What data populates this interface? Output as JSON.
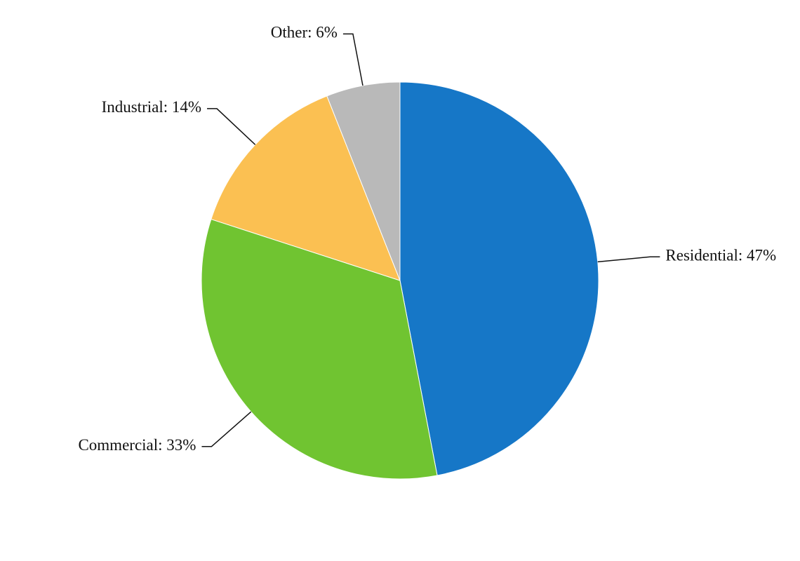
{
  "chart_data": {
    "type": "pie",
    "values": [
      47,
      33,
      14,
      6
    ],
    "value_labels": [
      "Residential: 47%",
      "Commercial: 33%",
      "Industrial: 14%",
      "Other: 6%"
    ],
    "colors": [
      "#1677c7",
      "#70c431",
      "#fbc052",
      "#b9b9b9"
    ]
  }
}
